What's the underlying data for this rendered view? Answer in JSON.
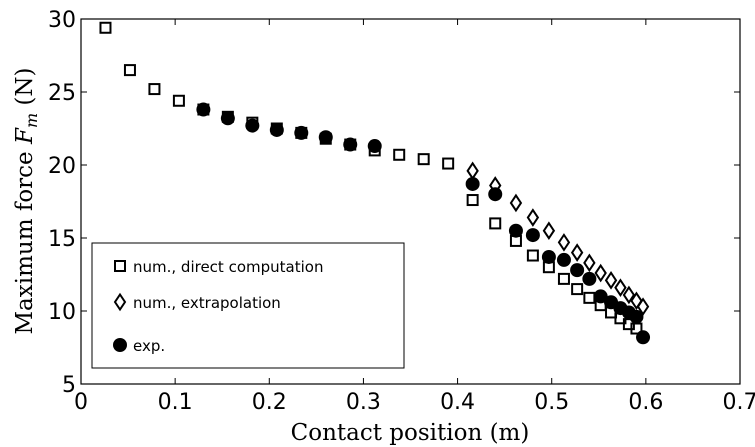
{
  "chart_data": {
    "type": "scatter",
    "xlabel": "Contact position (m)",
    "ylabel_prefix": "Maximum force ",
    "ylabel_var": "F",
    "ylabel_sub": "m",
    "ylabel_unit": " (N)",
    "xlim": [
      0,
      0.7
    ],
    "ylim": [
      5,
      30
    ],
    "xticks": [
      0,
      0.1,
      0.2,
      0.3,
      0.4,
      0.5,
      0.6,
      0.7
    ],
    "xtick_labels": [
      "0",
      "0.1",
      "0.2",
      "0.3",
      "0.4",
      "0.5",
      "0.6",
      "0.7"
    ],
    "yticks": [
      5,
      10,
      15,
      20,
      25,
      30
    ],
    "ytick_labels": [
      "5",
      "10",
      "15",
      "20",
      "25",
      "30"
    ],
    "grid": false,
    "legend_position": "bottom-left",
    "series": [
      {
        "name": "num., direct computation",
        "marker": "square-open",
        "x": [
          0.026,
          0.052,
          0.078,
          0.104,
          0.13,
          0.156,
          0.182,
          0.208,
          0.234,
          0.26,
          0.286,
          0.312,
          0.338,
          0.364,
          0.39,
          0.416,
          0.44,
          0.462,
          0.48,
          0.497,
          0.513,
          0.527,
          0.54,
          0.552,
          0.563,
          0.573,
          0.582,
          0.59
        ],
        "y": [
          29.4,
          26.5,
          25.2,
          24.4,
          23.8,
          23.3,
          22.9,
          22.5,
          22.2,
          21.8,
          21.4,
          21.0,
          20.7,
          20.4,
          20.1,
          17.6,
          16.0,
          14.8,
          13.8,
          13.0,
          12.2,
          11.5,
          10.9,
          10.4,
          9.9,
          9.5,
          9.1,
          8.8
        ]
      },
      {
        "name": "num., extrapolation",
        "marker": "diamond-open",
        "x": [
          0.416,
          0.44,
          0.462,
          0.48,
          0.497,
          0.513,
          0.527,
          0.54,
          0.552,
          0.563,
          0.573,
          0.582,
          0.59,
          0.597
        ],
        "y": [
          19.6,
          18.6,
          17.4,
          16.4,
          15.5,
          14.7,
          14.0,
          13.3,
          12.6,
          12.1,
          11.6,
          11.1,
          10.7,
          10.3
        ]
      },
      {
        "name": "exp.",
        "marker": "circle-filled",
        "x": [
          0.13,
          0.156,
          0.182,
          0.208,
          0.234,
          0.26,
          0.286,
          0.312,
          0.416,
          0.44,
          0.462,
          0.48,
          0.497,
          0.513,
          0.527,
          0.54,
          0.552,
          0.563,
          0.573,
          0.582,
          0.59,
          0.597
        ],
        "y": [
          23.8,
          23.2,
          22.7,
          22.4,
          22.2,
          21.9,
          21.4,
          21.3,
          18.7,
          18.0,
          15.5,
          15.2,
          13.7,
          13.5,
          12.8,
          12.2,
          11.0,
          10.6,
          10.2,
          9.9,
          9.6,
          8.2
        ]
      }
    ]
  }
}
